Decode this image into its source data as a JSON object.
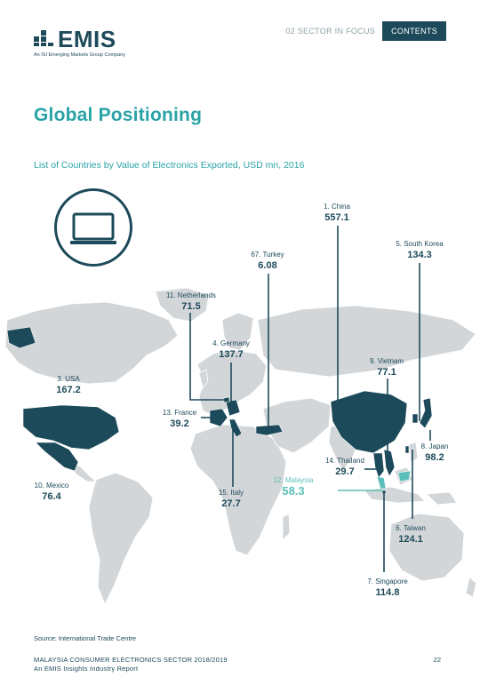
{
  "brand": {
    "logo_text": "EMIS",
    "tagline": "An ISI Emerging Markets Group Company"
  },
  "nav": {
    "section": "02 SECTOR IN FOCUS",
    "contents": "CONTENTS"
  },
  "page_title": "Global Positioning",
  "chart_title": "List of Countries by Value of Electronics Exported, USD mn, 2016",
  "icon": "laptop-icon",
  "colors": {
    "accent": "#2aa3a6",
    "dark": "#1d4a5a",
    "map_land": "#d3d6d8",
    "highlight": "#5dbfb9"
  },
  "chart_data": {
    "type": "map",
    "unit": "USD mn",
    "year": "2016",
    "countries": [
      {
        "rank": "1",
        "name": "China",
        "label": "1. China",
        "value": "557.1"
      },
      {
        "rank": "3",
        "name": "USA",
        "label": "3. USA",
        "value": "167.2"
      },
      {
        "rank": "4",
        "name": "Germany",
        "label": "4. Germany",
        "value": "137.7"
      },
      {
        "rank": "5",
        "name": "South Korea",
        "label": "5. South Korea",
        "value": "134.3"
      },
      {
        "rank": "6",
        "name": "Taiwan",
        "label": "6. Taiwan",
        "value": "124.1"
      },
      {
        "rank": "7",
        "name": "Singapore",
        "label": "7. Singapore",
        "value": "114.8"
      },
      {
        "rank": "8",
        "name": "Japan",
        "label": "8. Japan",
        "value": "98.2"
      },
      {
        "rank": "9",
        "name": "Vietnam",
        "label": "9. Vietnam",
        "value": "77.1"
      },
      {
        "rank": "10",
        "name": "Mexico",
        "label": "10. Mexico",
        "value": "76.4"
      },
      {
        "rank": "11",
        "name": "Netherlands",
        "label": "11. Netherlands",
        "value": "71.5"
      },
      {
        "rank": "12",
        "name": "Malaysia",
        "label": "12. Malaysia",
        "value": "58.3",
        "highlight": true
      },
      {
        "rank": "13",
        "name": "France",
        "label": "13. France",
        "value": "39.2"
      },
      {
        "rank": "14",
        "name": "Thailand",
        "label": "14. Thailand",
        "value": "29.7"
      },
      {
        "rank": "15",
        "name": "Italy",
        "label": "15. Italy",
        "value": "27.7"
      },
      {
        "rank": "67",
        "name": "Turkey",
        "label": "67. Turkey",
        "value": "6.08"
      }
    ]
  },
  "labels": {
    "china": {
      "name": "1. China",
      "value": "557.1"
    },
    "usa": {
      "name": "3. USA",
      "value": "167.2"
    },
    "germany": {
      "name": "4. Germany",
      "value": "137.7"
    },
    "south_korea": {
      "name": "5. South Korea",
      "value": "134.3"
    },
    "taiwan": {
      "name": "6. Taiwan",
      "value": "124.1"
    },
    "singapore": {
      "name": "7. Singapore",
      "value": "114.8"
    },
    "japan": {
      "name": "8. Japan",
      "value": "98.2"
    },
    "vietnam": {
      "name": "9. Vietnam",
      "value": "77.1"
    },
    "mexico": {
      "name": "10. Mexico",
      "value": "76.4"
    },
    "netherlands": {
      "name": "11. Netherlands",
      "value": "71.5"
    },
    "malaysia": {
      "name": "12. Malaysia",
      "value": "58.3"
    },
    "france": {
      "name": "13. France",
      "value": "39.2"
    },
    "thailand": {
      "name": "14. Thailand",
      "value": "29.7"
    },
    "italy": {
      "name": "15. Italy",
      "value": "27.7"
    },
    "turkey": {
      "name": "67. Turkey",
      "value": "6.08"
    }
  },
  "source": "Source:  International Trade Centre",
  "footer": {
    "line1": "MALAYSIA CONSUMER ELECTRONICS SECTOR 2018/2019",
    "line2": "An EMIS Insights Industry Report",
    "page": "22"
  }
}
